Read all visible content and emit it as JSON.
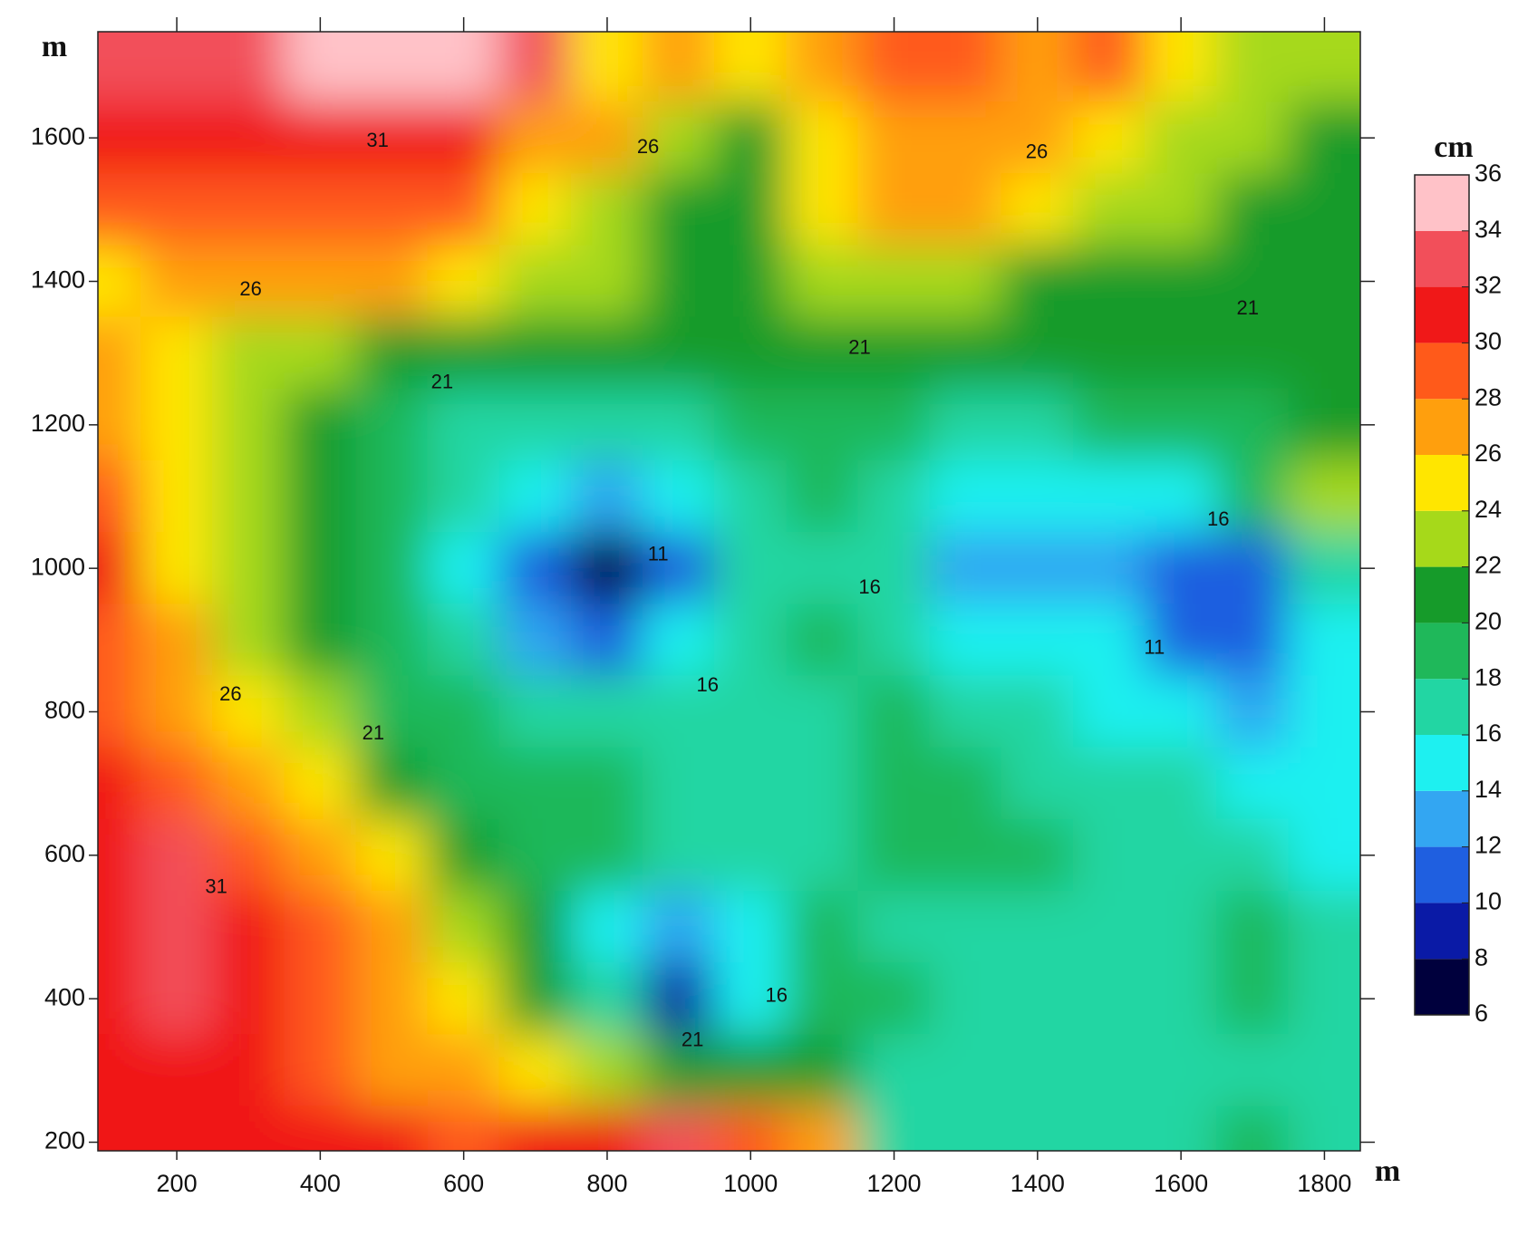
{
  "chart_data": {
    "type": "contour",
    "x_label": "m",
    "y_label": "m",
    "xlim": [
      90,
      1850
    ],
    "ylim": [
      188,
      1748
    ],
    "xticks": [
      200,
      400,
      600,
      800,
      1000,
      1200,
      1400,
      1600,
      1800
    ],
    "yticks": [
      200,
      400,
      600,
      800,
      1000,
      1200,
      1400,
      1600
    ],
    "x": [
      100,
      200,
      300,
      400,
      500,
      600,
      700,
      800,
      900,
      1000,
      1100,
      1200,
      1300,
      1400,
      1500,
      1600,
      1700,
      1800
    ],
    "y": [
      1700,
      1600,
      1500,
      1400,
      1300,
      1200,
      1100,
      1000,
      900,
      800,
      700,
      600,
      500,
      400,
      300,
      200
    ],
    "z": [
      [
        32,
        32,
        33,
        34,
        34,
        35,
        32,
        25,
        26,
        25,
        27,
        28,
        28,
        27,
        28,
        25,
        23,
        22
      ],
      [
        31,
        31,
        31,
        31,
        31,
        30,
        27,
        26,
        23,
        20,
        24,
        27,
        27,
        27,
        25,
        23,
        22,
        21
      ],
      [
        28,
        28,
        29,
        29,
        29,
        28,
        24,
        23,
        21,
        21,
        24,
        26,
        27,
        25,
        23,
        22,
        21,
        21
      ],
      [
        25,
        26,
        26,
        27,
        26,
        24,
        23,
        22,
        20,
        21,
        22,
        23,
        22,
        21,
        21,
        20,
        20,
        21
      ],
      [
        27,
        24,
        23,
        22,
        21,
        20,
        20,
        20,
        20,
        20,
        20,
        21,
        20,
        20,
        20,
        20,
        20,
        21
      ],
      [
        27,
        24,
        22,
        20,
        18,
        17,
        17,
        17,
        17,
        18,
        18,
        18,
        17,
        17,
        18,
        18,
        19,
        20
      ],
      [
        28,
        25,
        22,
        20,
        18,
        16,
        14,
        13,
        15,
        17,
        18,
        17,
        15,
        14,
        15,
        15,
        18,
        23
      ],
      [
        30,
        25,
        23,
        20,
        18,
        15,
        11,
        7,
        11,
        16,
        17,
        16,
        12,
        13,
        13,
        10,
        10,
        16
      ],
      [
        29,
        26,
        23,
        20,
        18,
        16,
        13,
        11,
        14,
        17,
        18,
        17,
        15,
        14,
        14,
        10,
        10,
        14
      ],
      [
        29,
        27,
        25,
        22,
        19,
        18,
        17,
        16,
        16,
        17,
        17,
        18,
        17,
        16,
        15,
        14,
        13,
        14
      ],
      [
        30,
        29,
        27,
        24,
        21,
        19,
        18,
        18,
        17,
        17,
        17,
        18,
        18,
        17,
        17,
        16,
        15,
        14
      ],
      [
        31,
        32,
        29,
        27,
        24,
        21,
        19,
        18,
        16,
        16,
        17,
        18,
        19,
        18,
        17,
        17,
        16,
        15
      ],
      [
        31,
        33,
        30,
        28,
        26,
        23,
        20,
        15,
        12,
        14,
        18,
        17,
        17,
        17,
        17,
        17,
        18,
        16
      ],
      [
        31,
        32,
        30,
        28,
        27,
        25,
        21,
        17,
        8,
        15,
        19,
        18,
        17,
        17,
        17,
        17,
        18,
        17
      ],
      [
        31,
        31,
        30,
        29,
        27,
        26,
        24,
        23,
        21,
        21,
        20,
        17,
        17,
        17,
        17,
        17,
        17,
        17
      ],
      [
        31,
        31,
        31,
        30,
        30,
        29,
        30,
        30,
        32,
        29,
        27,
        17,
        17,
        17,
        17,
        17,
        18,
        17
      ]
    ],
    "colorbar": {
      "title": "cm",
      "lim": [
        6,
        36
      ],
      "ticks": [
        6,
        8,
        10,
        12,
        14,
        16,
        18,
        20,
        22,
        24,
        26,
        28,
        30,
        32,
        34,
        36
      ],
      "colors": [
        "#00003d",
        "#0a1aa6",
        "#1f5fe0",
        "#33a6f2",
        "#1ef0f0",
        "#22d6a3",
        "#1fb85a",
        "#169b2a",
        "#a6d91a",
        "#ffe600",
        "#ff9f0d",
        "#ff5a1a",
        "#f01818",
        "#f24f5a",
        "#ffc2c8"
      ]
    },
    "contour_labels": [
      {
        "x": 480,
        "y": 1595,
        "value": 31
      },
      {
        "x": 857,
        "y": 1586,
        "value": 26
      },
      {
        "x": 1399,
        "y": 1579,
        "value": 26
      },
      {
        "x": 303,
        "y": 1388,
        "value": 26
      },
      {
        "x": 570,
        "y": 1258,
        "value": 21
      },
      {
        "x": 1152,
        "y": 1306,
        "value": 21
      },
      {
        "x": 1693,
        "y": 1361,
        "value": 21
      },
      {
        "x": 1652,
        "y": 1067,
        "value": 16
      },
      {
        "x": 1166,
        "y": 972,
        "value": 16
      },
      {
        "x": 940,
        "y": 836,
        "value": 16
      },
      {
        "x": 275,
        "y": 823,
        "value": 26
      },
      {
        "x": 474,
        "y": 769,
        "value": 21
      },
      {
        "x": 255,
        "y": 555,
        "value": 31
      },
      {
        "x": 1036,
        "y": 403,
        "value": 16
      },
      {
        "x": 919,
        "y": 341,
        "value": 21
      },
      {
        "x": 871,
        "y": 1018,
        "value": 11
      },
      {
        "x": 1563,
        "y": 888,
        "value": 11
      }
    ]
  }
}
